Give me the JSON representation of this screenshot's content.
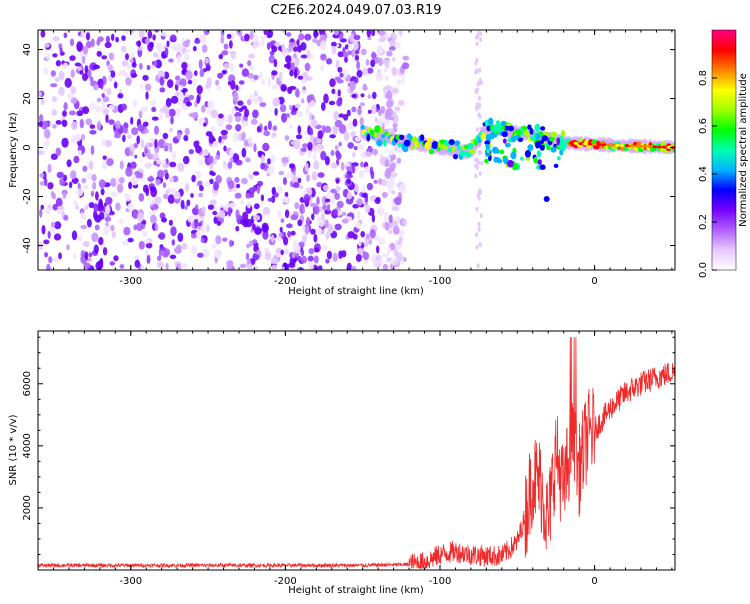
{
  "title": "C2E6.2024.049.07.03.R19",
  "chart_data": [
    {
      "type": "heatmap",
      "xlabel": "Height of straight line (km)",
      "ylabel": "Frequency (Hz)",
      "xlim": [
        -360,
        52
      ],
      "ylim": [
        -50,
        48
      ],
      "xticks": [
        -300,
        -200,
        -100,
        0
      ],
      "yticks": [
        -40,
        -20,
        0,
        20,
        40
      ],
      "colorbar": {
        "label": "Normalized spectral amplitude",
        "range": [
          0,
          1
        ],
        "ticks": [
          0.0,
          0.2,
          0.4,
          0.6,
          0.8
        ],
        "colors": [
          "#ffffff",
          "#e8c8ff",
          "#b060ff",
          "#7800ff",
          "#0000ff",
          "#00b4ff",
          "#00ffb0",
          "#00ff00",
          "#a0ff00",
          "#ffff00",
          "#ff8000",
          "#ff0000",
          "#ff0080"
        ]
      },
      "regions": [
        {
          "name": "noise",
          "x": [
            -360,
            -122
          ],
          "freq": [
            -50,
            48
          ],
          "amplitude": 0.12
        },
        {
          "name": "signal",
          "x": [
            -150,
            52
          ],
          "freq_center": [
            6,
            2,
            -2,
            8,
            5,
            2,
            1,
            0
          ],
          "freq_center_x": [
            -150,
            -120,
            -80,
            -70,
            -40,
            -20,
            10,
            52
          ],
          "amplitude": 0.7
        }
      ]
    },
    {
      "type": "line",
      "xlabel": "Height of straight line (km)",
      "ylabel": "SNR (10 * v/v)",
      "xlim": [
        -360,
        52
      ],
      "ylim": [
        0,
        7700
      ],
      "xticks": [
        -300,
        -200,
        -100,
        0
      ],
      "yticks": [
        2000,
        4000,
        6000
      ],
      "color": "#ee2a2a",
      "x": [
        -360,
        -300,
        -250,
        -200,
        -150,
        -120,
        -110,
        -100,
        -90,
        -80,
        -70,
        -60,
        -50,
        -45,
        -40,
        -35,
        -30,
        -25,
        -20,
        -15,
        -10,
        -5,
        0,
        10,
        20,
        30,
        40,
        52
      ],
      "y": [
        150,
        150,
        150,
        150,
        150,
        180,
        250,
        500,
        600,
        500,
        450,
        450,
        900,
        1700,
        3000,
        2800,
        1500,
        3800,
        2500,
        4200,
        3200,
        4300,
        4500,
        5200,
        5700,
        6000,
        6200,
        6400
      ]
    }
  ]
}
